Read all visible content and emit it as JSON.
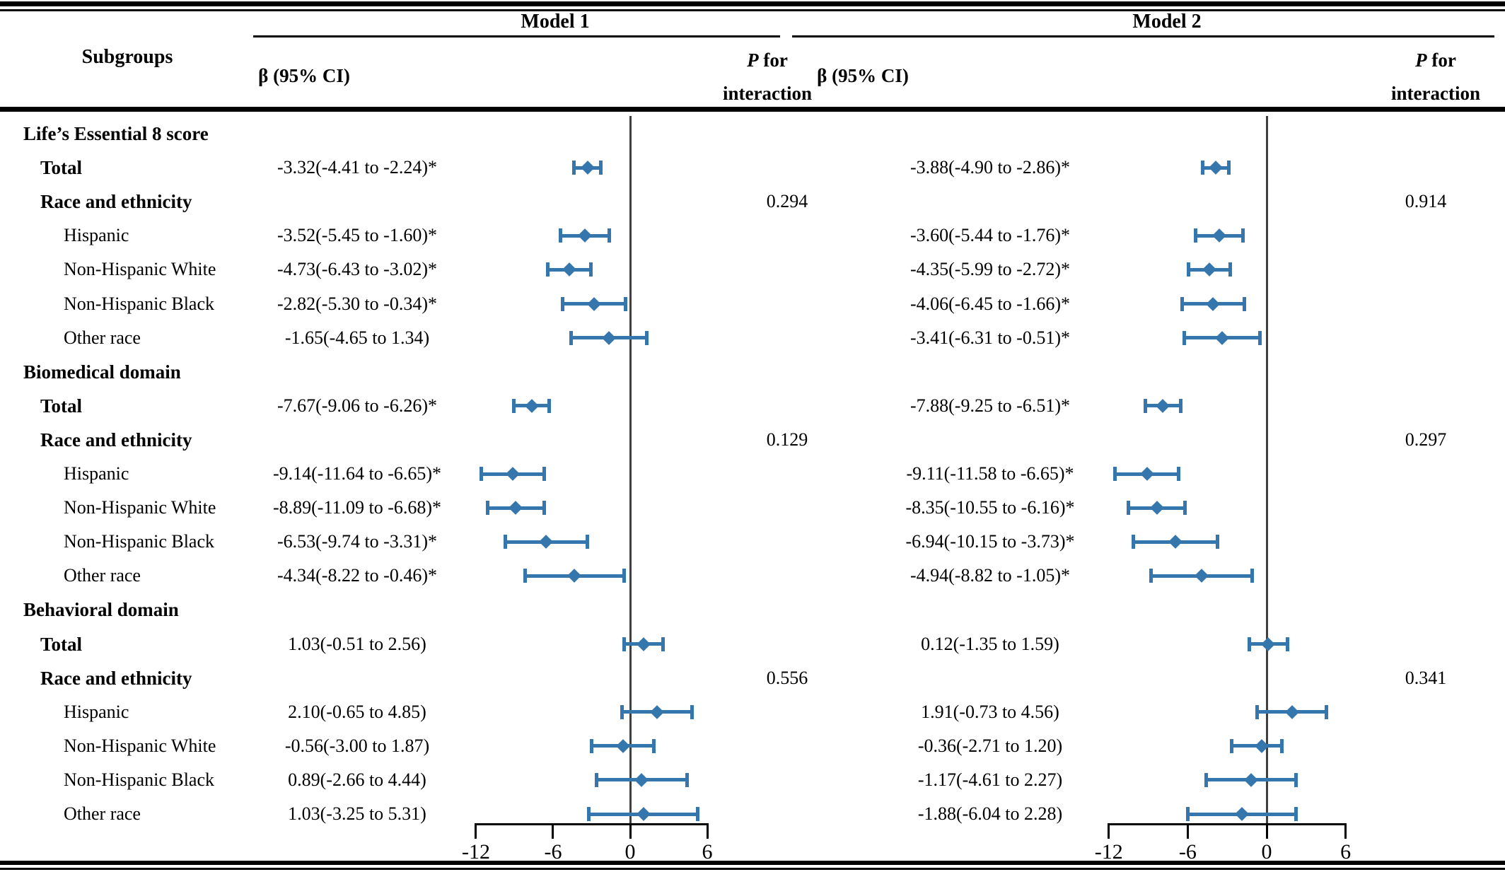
{
  "figure": {
    "subgroups_header": "Subgroups",
    "models": [
      {
        "title": "Model 1",
        "beta_header": "β (95% CI)",
        "p_header_italic": "P",
        "p_header_rest": " for",
        "p_header_line2": "interaction"
      },
      {
        "title": "Model 2",
        "beta_header": "β (95% CI)",
        "p_header_italic": "P",
        "p_header_rest": " for",
        "p_header_line2": "interaction"
      }
    ]
  },
  "colors": {
    "marker": "#3576AD",
    "zero_line": "#404040",
    "text": "#000000"
  },
  "rows": [
    {
      "label": "Life’s Essential 8 score",
      "style": "section"
    },
    {
      "label": "Total",
      "style": "bold",
      "m1": "-3.32(-4.41 to -2.24)*",
      "m2": "-3.88(-4.90 to -2.86)*",
      "ref": [
        0,
        0
      ]
    },
    {
      "label": "Race and ethnicity",
      "style": "bold",
      "m1_p": "0.294",
      "m2_p": "0.914"
    },
    {
      "label": "Hispanic",
      "style": "item",
      "m1": "-3.52(-5.45 to -1.60)*",
      "m2": "-3.60(-5.44 to -1.76)*",
      "ref": [
        0,
        1
      ]
    },
    {
      "label": "Non-Hispanic White",
      "style": "item",
      "m1": "-4.73(-6.43 to -3.02)*",
      "m2": "-4.35(-5.99 to -2.72)*",
      "ref": [
        0,
        2
      ]
    },
    {
      "label": "Non-Hispanic Black",
      "style": "item",
      "m1": "-2.82(-5.30 to -0.34)*",
      "m2": "-4.06(-6.45 to -1.66)*",
      "ref": [
        0,
        3
      ]
    },
    {
      "label": "Other race",
      "style": "item",
      "m1": "-1.65(-4.65 to 1.34)",
      "m2": "-3.41(-6.31 to -0.51)*",
      "ref": [
        0,
        4
      ]
    },
    {
      "label": "Biomedical domain",
      "style": "section"
    },
    {
      "label": "Total",
      "style": "bold",
      "m1": "-7.67(-9.06 to -6.26)*",
      "m2": "-7.88(-9.25 to -6.51)*",
      "ref": [
        1,
        0
      ]
    },
    {
      "label": "Race and ethnicity",
      "style": "bold",
      "m1_p": "0.129",
      "m2_p": "0.297"
    },
    {
      "label": "Hispanic",
      "style": "item",
      "m1": "-9.14(-11.64 to -6.65)*",
      "m2": "-9.11(-11.58 to -6.65)*",
      "ref": [
        1,
        1
      ]
    },
    {
      "label": "Non-Hispanic White",
      "style": "item",
      "m1": "-8.89(-11.09 to -6.68)*",
      "m2": "-8.35(-10.55 to -6.16)*",
      "ref": [
        1,
        2
      ]
    },
    {
      "label": "Non-Hispanic Black",
      "style": "item",
      "m1": "-6.53(-9.74 to -3.31)*",
      "m2": "-6.94(-10.15 to -3.73)*",
      "ref": [
        1,
        3
      ]
    },
    {
      "label": "Other race",
      "style": "item",
      "m1": "-4.34(-8.22 to -0.46)*",
      "m2": "-4.94(-8.82 to -1.05)*",
      "ref": [
        1,
        4
      ]
    },
    {
      "label": "Behavioral domain",
      "style": "section"
    },
    {
      "label": "Total",
      "style": "bold",
      "m1": "1.03(-0.51 to 2.56)",
      "m2": "0.12(-1.35 to 1.59)",
      "ref": [
        2,
        0
      ]
    },
    {
      "label": "Race and ethnicity",
      "style": "bold",
      "m1_p": "0.556",
      "m2_p": "0.341"
    },
    {
      "label": "Hispanic",
      "style": "item",
      "m1": "2.10(-0.65 to 4.85)",
      "m2": "1.91(-0.73 to 4.56)",
      "ref": [
        2,
        1
      ]
    },
    {
      "label": "Non-Hispanic White",
      "style": "item",
      "m1": "-0.56(-3.00 to 1.87)",
      "m2": "-0.36(-2.71 to 1.20)",
      "ref": [
        2,
        2
      ]
    },
    {
      "label": "Non-Hispanic Black",
      "style": "item",
      "m1": "0.89(-2.66 to 4.44)",
      "m2": "-1.17(-4.61 to 2.27)",
      "ref": [
        2,
        3
      ]
    },
    {
      "label": "Other race",
      "style": "item",
      "m1": "1.03(-3.25 to 5.31)",
      "m2": "-1.88(-6.04 to 2.28)",
      "ref": [
        2,
        4
      ]
    }
  ],
  "chart_data": [
    {
      "type": "forest",
      "model": "Model 1",
      "effect_label": "β (95% CI)",
      "x_ticks": [
        -12,
        -6,
        0,
        6
      ],
      "xlim": [
        -13,
        7
      ],
      "reference_line": 0,
      "groups": [
        {
          "name": "Life’s Essential 8 score",
          "p_interaction": 0.294,
          "points": [
            {
              "subgroup": "Total",
              "estimate": -3.32,
              "ci_low": -4.41,
              "ci_high": -2.24,
              "significant": true
            },
            {
              "subgroup": "Hispanic",
              "estimate": -3.52,
              "ci_low": -5.45,
              "ci_high": -1.6,
              "significant": true
            },
            {
              "subgroup": "Non-Hispanic White",
              "estimate": -4.73,
              "ci_low": -6.43,
              "ci_high": -3.02,
              "significant": true
            },
            {
              "subgroup": "Non-Hispanic Black",
              "estimate": -2.82,
              "ci_low": -5.3,
              "ci_high": -0.34,
              "significant": true
            },
            {
              "subgroup": "Other race",
              "estimate": -1.65,
              "ci_low": -4.65,
              "ci_high": 1.34,
              "significant": false
            }
          ]
        },
        {
          "name": "Biomedical domain",
          "p_interaction": 0.129,
          "points": [
            {
              "subgroup": "Total",
              "estimate": -7.67,
              "ci_low": -9.06,
              "ci_high": -6.26,
              "significant": true
            },
            {
              "subgroup": "Hispanic",
              "estimate": -9.14,
              "ci_low": -11.64,
              "ci_high": -6.65,
              "significant": true
            },
            {
              "subgroup": "Non-Hispanic White",
              "estimate": -8.89,
              "ci_low": -11.09,
              "ci_high": -6.68,
              "significant": true
            },
            {
              "subgroup": "Non-Hispanic Black",
              "estimate": -6.53,
              "ci_low": -9.74,
              "ci_high": -3.31,
              "significant": true
            },
            {
              "subgroup": "Other race",
              "estimate": -4.34,
              "ci_low": -8.22,
              "ci_high": -0.46,
              "significant": true
            }
          ]
        },
        {
          "name": "Behavioral domain",
          "p_interaction": 0.556,
          "points": [
            {
              "subgroup": "Total",
              "estimate": 1.03,
              "ci_low": -0.51,
              "ci_high": 2.56,
              "significant": false
            },
            {
              "subgroup": "Hispanic",
              "estimate": 2.1,
              "ci_low": -0.65,
              "ci_high": 4.85,
              "significant": false
            },
            {
              "subgroup": "Non-Hispanic White",
              "estimate": -0.56,
              "ci_low": -3.0,
              "ci_high": 1.87,
              "significant": false
            },
            {
              "subgroup": "Non-Hispanic Black",
              "estimate": 0.89,
              "ci_low": -2.66,
              "ci_high": 4.44,
              "significant": false
            },
            {
              "subgroup": "Other race",
              "estimate": 1.03,
              "ci_low": -3.25,
              "ci_high": 5.31,
              "significant": false
            }
          ]
        }
      ]
    },
    {
      "type": "forest",
      "model": "Model 2",
      "effect_label": "β (95% CI)",
      "x_ticks": [
        -12,
        -6,
        0,
        6
      ],
      "xlim": [
        -13,
        7
      ],
      "reference_line": 0,
      "groups": [
        {
          "name": "Life’s Essential 8 score",
          "p_interaction": 0.914,
          "points": [
            {
              "subgroup": "Total",
              "estimate": -3.88,
              "ci_low": -4.9,
              "ci_high": -2.86,
              "significant": true
            },
            {
              "subgroup": "Hispanic",
              "estimate": -3.6,
              "ci_low": -5.44,
              "ci_high": -1.76,
              "significant": true
            },
            {
              "subgroup": "Non-Hispanic White",
              "estimate": -4.35,
              "ci_low": -5.99,
              "ci_high": -2.72,
              "significant": true
            },
            {
              "subgroup": "Non-Hispanic Black",
              "estimate": -4.06,
              "ci_low": -6.45,
              "ci_high": -1.66,
              "significant": true
            },
            {
              "subgroup": "Other race",
              "estimate": -3.41,
              "ci_low": -6.31,
              "ci_high": -0.51,
              "significant": true
            }
          ]
        },
        {
          "name": "Biomedical domain",
          "p_interaction": 0.297,
          "points": [
            {
              "subgroup": "Total",
              "estimate": -7.88,
              "ci_low": -9.25,
              "ci_high": -6.51,
              "significant": true
            },
            {
              "subgroup": "Hispanic",
              "estimate": -9.11,
              "ci_low": -11.58,
              "ci_high": -6.65,
              "significant": true
            },
            {
              "subgroup": "Non-Hispanic White",
              "estimate": -8.35,
              "ci_low": -10.55,
              "ci_high": -6.16,
              "significant": true
            },
            {
              "subgroup": "Non-Hispanic Black",
              "estimate": -6.94,
              "ci_low": -10.15,
              "ci_high": -3.73,
              "significant": true
            },
            {
              "subgroup": "Other race",
              "estimate": -4.94,
              "ci_low": -8.82,
              "ci_high": -1.05,
              "significant": true
            }
          ]
        },
        {
          "name": "Behavioral domain",
          "p_interaction": 0.341,
          "points": [
            {
              "subgroup": "Total",
              "estimate": 0.12,
              "ci_low": -1.35,
              "ci_high": 1.59,
              "significant": false
            },
            {
              "subgroup": "Hispanic",
              "estimate": 1.91,
              "ci_low": -0.73,
              "ci_high": 4.56,
              "significant": false
            },
            {
              "subgroup": "Non-Hispanic White",
              "estimate": -0.36,
              "ci_low": -2.71,
              "ci_high": 1.2,
              "significant": false
            },
            {
              "subgroup": "Non-Hispanic Black",
              "estimate": -1.17,
              "ci_low": -4.61,
              "ci_high": 2.27,
              "significant": false
            },
            {
              "subgroup": "Other race",
              "estimate": -1.88,
              "ci_low": -6.04,
              "ci_high": 2.28,
              "significant": false
            }
          ]
        }
      ]
    }
  ]
}
